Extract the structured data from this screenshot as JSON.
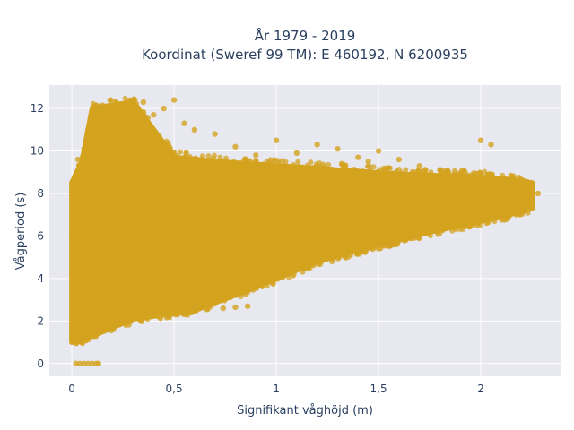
{
  "chart_data": {
    "type": "scatter",
    "title_lines": [
      "År 1979 - 2019",
      "Koordinat (Sweref 99 TM): E 460192, N 6200935"
    ],
    "xlabel": "Signifikant våghöjd (m)",
    "ylabel": "Vågperiod (s)",
    "xlim": [
      -0.11,
      2.39
    ],
    "ylim": [
      -0.6,
      13.1
    ],
    "x_ticks": [
      0,
      0.5,
      1,
      1.5,
      2
    ],
    "x_tick_labels": [
      "0",
      "0,5",
      "1",
      "1,5",
      "2"
    ],
    "y_ticks": [
      0,
      2,
      4,
      6,
      8,
      10,
      12
    ],
    "y_tick_labels": [
      "0",
      "2",
      "4",
      "6",
      "8",
      "10",
      "12"
    ],
    "grid": true,
    "legend": "none",
    "colors": {
      "marker": "#d4a31f",
      "plot_bg": "#e8e8f0",
      "grid": "#ffffff",
      "text": "#2a3f5f"
    },
    "series": [
      {
        "x": [
          0.01,
          0.03,
          0.05,
          0.07,
          0.1,
          0.13,
          0.02,
          0.04,
          0.06,
          0.08,
          0.12,
          0.15,
          0.18,
          0.22,
          0.28,
          0.35,
          0.42,
          0.5,
          0.58,
          0.66,
          0.74,
          0.8,
          0.86,
          0.03,
          0.06,
          0.09,
          0.11,
          0.13,
          0.14,
          0.16,
          0.2,
          0.25,
          0.3,
          0.35,
          0.4,
          0.45,
          0.5,
          0.55,
          0.6,
          0.7,
          0.8,
          0.9,
          1.0,
          1.1,
          1.2,
          1.3,
          1.4,
          1.5,
          1.6,
          1.7,
          1.8,
          1.9,
          2.0,
          2.1,
          2.2,
          2.25,
          2.28,
          0.1,
          0.15,
          0.2,
          0.25,
          0.3,
          0.35,
          0.4,
          0.5,
          0.6,
          0.7,
          0.8,
          0.9,
          1.0,
          1.2,
          1.4,
          1.6,
          1.8,
          2.0,
          0.12,
          0.18,
          0.22,
          0.27,
          0.31,
          0.33,
          0.38,
          0.45,
          0.52,
          0.62,
          0.75,
          0.88,
          1.05,
          1.2,
          1.32,
          1.45,
          1.55,
          2.0,
          2.05,
          0.3,
          0.45,
          0.55,
          0.65,
          0.85,
          1.0,
          1.3,
          1.5,
          1.7,
          2.1,
          2.2
        ],
        "y": [
          1.4,
          1.2,
          1.0,
          1.1,
          1.3,
          1.5,
          2.5,
          3.0,
          2.2,
          1.8,
          1.7,
          1.8,
          1.9,
          2.0,
          2.1,
          2.2,
          2.3,
          2.4,
          2.5,
          2.55,
          2.6,
          2.65,
          2.7,
          9.6,
          9.3,
          9.0,
          9.2,
          9.7,
          10.2,
          10.8,
          11.3,
          11.8,
          12.1,
          12.3,
          11.7,
          12.0,
          12.4,
          11.3,
          11.0,
          10.8,
          10.2,
          9.8,
          10.5,
          9.9,
          10.3,
          10.1,
          9.7,
          10.0,
          9.6,
          9.3,
          9.1,
          8.9,
          8.8,
          8.6,
          8.5,
          8.3,
          8.0,
          7.5,
          7.0,
          8.2,
          6.5,
          7.8,
          5.5,
          8.4,
          6.0,
          7.2,
          6.5,
          7.5,
          6.4,
          7.0,
          6.8,
          7.3,
          7.6,
          8.0,
          8.2,
          4.0,
          4.5,
          5.0,
          6.2,
          7.0,
          3.5,
          4.2,
          5.3,
          6.6,
          8.5,
          8.9,
          9.1,
          9.0,
          9.3,
          9.4,
          9.5,
          9.2,
          10.5,
          10.3,
          3.0,
          3.6,
          4.0,
          4.4,
          4.9,
          5.3,
          5.8,
          6.2,
          6.5,
          7.5,
          7.8
        ]
      }
    ],
    "zero_period_points": {
      "x": [
        0.02,
        0.04,
        0.06,
        0.08,
        0.1,
        0.12,
        0.13
      ],
      "y": [
        0,
        0,
        0,
        0,
        0,
        0,
        0
      ]
    },
    "dense_region": {
      "description_values": {
        "lower_envelope": [
          [
            0,
            1.0
          ],
          [
            0.1,
            1.3
          ],
          [
            0.3,
            2.1
          ],
          [
            0.6,
            2.5
          ],
          [
            0.9,
            3.6
          ],
          [
            1.2,
            4.8
          ],
          [
            1.5,
            5.6
          ],
          [
            1.8,
            6.3
          ],
          [
            2.1,
            6.9
          ],
          [
            2.25,
            7.3
          ]
        ],
        "upper_envelope": [
          [
            0,
            8.5
          ],
          [
            0.05,
            9.5
          ],
          [
            0.1,
            12.0
          ],
          [
            0.3,
            12.3
          ],
          [
            0.5,
            9.7
          ],
          [
            0.7,
            9.5
          ],
          [
            1.0,
            9.3
          ],
          [
            1.3,
            9.1
          ],
          [
            1.6,
            8.9
          ],
          [
            1.9,
            8.8
          ],
          [
            2.1,
            8.7
          ],
          [
            2.25,
            8.5
          ]
        ]
      }
    }
  }
}
